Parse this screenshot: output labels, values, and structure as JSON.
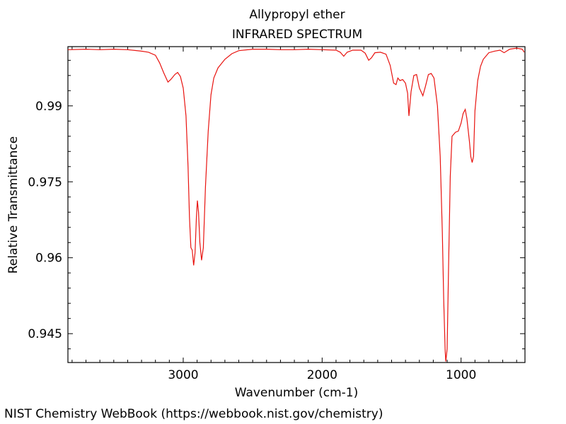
{
  "chart_data": {
    "type": "line",
    "title": "Allypropyl ether",
    "subtitle": "INFRARED SPECTRUM",
    "xlabel": "Wavenumber (cm-1)",
    "ylabel": "Relative Transmittance",
    "xlim": [
      3830,
      540
    ],
    "ylim": [
      0.9393,
      1.0017
    ],
    "x_reversed": true,
    "x_ticks": [
      3000,
      2000,
      1000
    ],
    "x_tick_labels": [
      "3000",
      "2000",
      "1000"
    ],
    "y_ticks": [
      0.99,
      0.975,
      0.96,
      0.945
    ],
    "y_tick_labels": [
      "0.99",
      "0.975",
      "0.96",
      "0.945"
    ],
    "grid": false,
    "series": [
      {
        "color": "#e8130f",
        "points": [
          [
            3830,
            1.0011
          ],
          [
            3700,
            1.0012
          ],
          [
            3600,
            1.0011
          ],
          [
            3500,
            1.0012
          ],
          [
            3400,
            1.0011
          ],
          [
            3300,
            1.0008
          ],
          [
            3250,
            1.0006
          ],
          [
            3200,
            1.0
          ],
          [
            3170,
            0.9985
          ],
          [
            3140,
            0.9965
          ],
          [
            3110,
            0.9947
          ],
          [
            3090,
            0.9952
          ],
          [
            3060,
            0.9962
          ],
          [
            3040,
            0.9966
          ],
          [
            3020,
            0.9958
          ],
          [
            3000,
            0.9935
          ],
          [
            2980,
            0.988
          ],
          [
            2965,
            0.978
          ],
          [
            2955,
            0.968
          ],
          [
            2945,
            0.962
          ],
          [
            2935,
            0.9615
          ],
          [
            2925,
            0.9585
          ],
          [
            2915,
            0.961
          ],
          [
            2905,
            0.968
          ],
          [
            2898,
            0.9713
          ],
          [
            2890,
            0.969
          ],
          [
            2880,
            0.963
          ],
          [
            2868,
            0.9595
          ],
          [
            2855,
            0.962
          ],
          [
            2840,
            0.974
          ],
          [
            2820,
            0.985
          ],
          [
            2800,
            0.9922
          ],
          [
            2780,
            0.9955
          ],
          [
            2750,
            0.9975
          ],
          [
            2700,
            0.9992
          ],
          [
            2650,
            1.0003
          ],
          [
            2600,
            1.0009
          ],
          [
            2500,
            1.0012
          ],
          [
            2400,
            1.0012
          ],
          [
            2300,
            1.0011
          ],
          [
            2200,
            1.0011
          ],
          [
            2100,
            1.0012
          ],
          [
            2000,
            1.0011
          ],
          [
            1900,
            1.001
          ],
          [
            1870,
            1.0006
          ],
          [
            1845,
            0.9998
          ],
          [
            1820,
            1.0006
          ],
          [
            1780,
            1.001
          ],
          [
            1720,
            1.001
          ],
          [
            1690,
            1.0004
          ],
          [
            1665,
            0.999
          ],
          [
            1645,
            0.9995
          ],
          [
            1620,
            1.0005
          ],
          [
            1580,
            1.0006
          ],
          [
            1540,
            1.0002
          ],
          [
            1510,
            0.998
          ],
          [
            1485,
            0.9945
          ],
          [
            1468,
            0.9942
          ],
          [
            1455,
            0.9955
          ],
          [
            1440,
            0.995
          ],
          [
            1420,
            0.9952
          ],
          [
            1400,
            0.9945
          ],
          [
            1385,
            0.9925
          ],
          [
            1375,
            0.988
          ],
          [
            1360,
            0.9928
          ],
          [
            1340,
            0.996
          ],
          [
            1320,
            0.9962
          ],
          [
            1300,
            0.9935
          ],
          [
            1275,
            0.992
          ],
          [
            1255,
            0.994
          ],
          [
            1235,
            0.9962
          ],
          [
            1215,
            0.9964
          ],
          [
            1195,
            0.9955
          ],
          [
            1170,
            0.99
          ],
          [
            1150,
            0.98
          ],
          [
            1135,
            0.965
          ],
          [
            1125,
            0.952
          ],
          [
            1115,
            0.942
          ],
          [
            1110,
            0.9395
          ],
          [
            1100,
            0.942
          ],
          [
            1090,
            0.958
          ],
          [
            1078,
            0.976
          ],
          [
            1065,
            0.984
          ],
          [
            1040,
            0.9848
          ],
          [
            1020,
            0.985
          ],
          [
            1000,
            0.9866
          ],
          [
            985,
            0.9885
          ],
          [
            970,
            0.9893
          ],
          [
            958,
            0.9875
          ],
          [
            948,
            0.985
          ],
          [
            940,
            0.983
          ],
          [
            930,
            0.98
          ],
          [
            920,
            0.9788
          ],
          [
            910,
            0.98
          ],
          [
            900,
            0.989
          ],
          [
            880,
            0.995
          ],
          [
            860,
            0.9978
          ],
          [
            840,
            0.9992
          ],
          [
            800,
            1.0005
          ],
          [
            760,
            1.0008
          ],
          [
            720,
            1.001
          ],
          [
            690,
            1.0005
          ],
          [
            650,
            1.0012
          ],
          [
            600,
            1.0014
          ],
          [
            560,
            1.0012
          ],
          [
            545,
            1.0006
          ]
        ]
      }
    ]
  },
  "footer": "NIST Chemistry WebBook (https://webbook.nist.gov/chemistry)"
}
